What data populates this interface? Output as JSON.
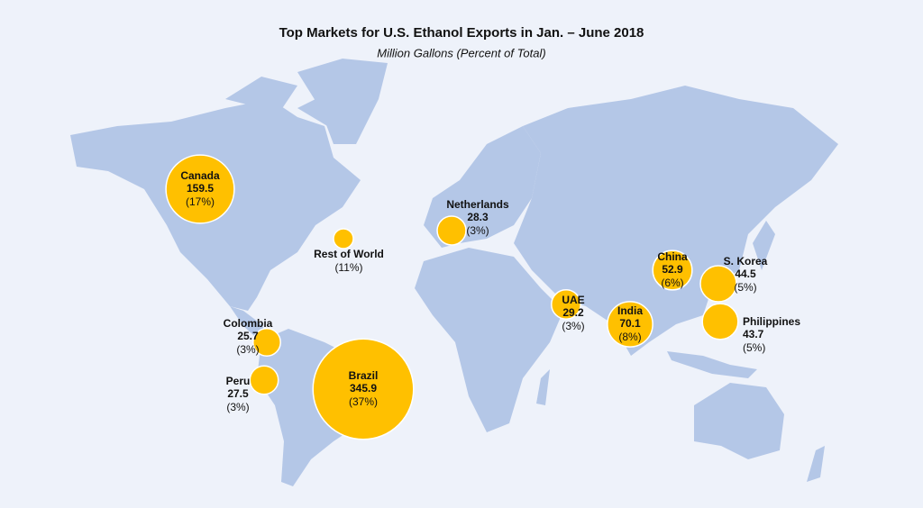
{
  "header": {
    "title": "Top Markets for U.S. Ethanol Exports in Jan. – June 2018",
    "subtitle": "Million Gallons (Percent of Total)"
  },
  "markets": [
    {
      "name": "Canada",
      "value": 159.5,
      "share": 17,
      "share_label": "(17%)"
    },
    {
      "name": "Rest of World",
      "share": 11,
      "share_label": "(11%)"
    },
    {
      "name": "Netherlands",
      "value": 28.3,
      "share": 3,
      "share_label": "(3%)"
    },
    {
      "name": "China",
      "value": 52.9,
      "share": 6,
      "share_label": "(6%)"
    },
    {
      "name": "S. Korea",
      "value": 44.5,
      "share": 5,
      "share_label": "(5%)"
    },
    {
      "name": "UAE",
      "value": 29.2,
      "share": 3,
      "share_label": "(3%)"
    },
    {
      "name": "India",
      "value": 70.1,
      "share": 8,
      "share_label": "(8%)"
    },
    {
      "name": "Philippines",
      "value": 43.7,
      "share": 5,
      "share_label": "(5%)"
    },
    {
      "name": "Colombia",
      "value": 25.7,
      "share": 3,
      "share_label": "(3%)"
    },
    {
      "name": "Peru",
      "value": 27.5,
      "share": 3,
      "share_label": "(3%)"
    },
    {
      "name": "Brazil",
      "value": 345.9,
      "share": 37,
      "share_label": "(37%)"
    }
  ]
}
